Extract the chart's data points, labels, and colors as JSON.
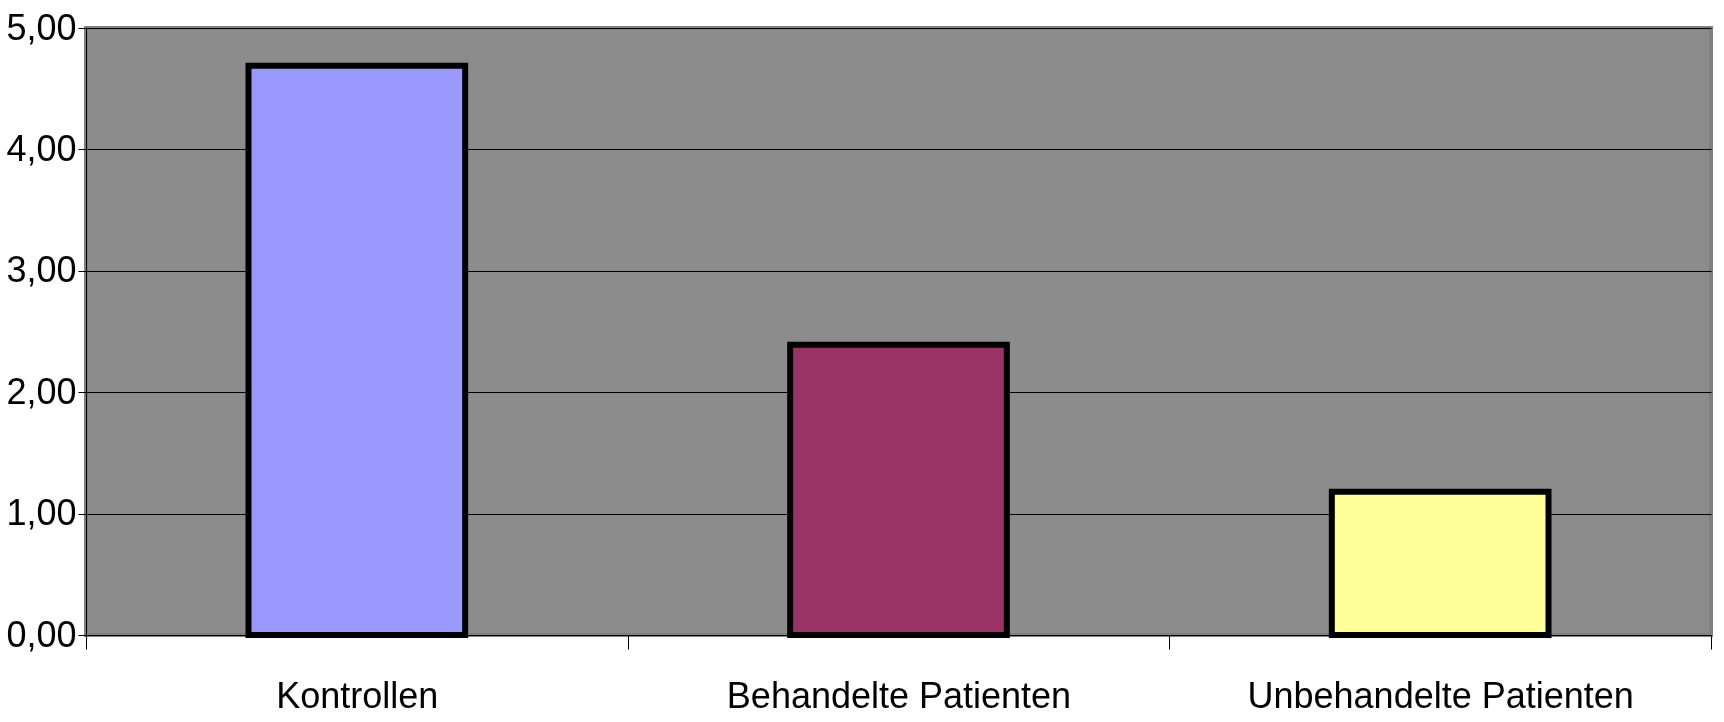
{
  "chart_data": {
    "type": "bar",
    "categories": [
      "Kontrollen",
      "Behandelte Patienten",
      "Unbehandelte Patienten"
    ],
    "values": [
      4.69,
      2.39,
      1.18
    ],
    "colors": [
      "#9999ff",
      "#993366",
      "#ffff99"
    ],
    "ylim": [
      0,
      5
    ],
    "yticks": [
      {
        "value": 0,
        "label": "0,00"
      },
      {
        "value": 1,
        "label": "1,00"
      },
      {
        "value": 2,
        "label": "2,00"
      },
      {
        "value": 3,
        "label": "3,00"
      },
      {
        "value": 4,
        "label": "4,00"
      },
      {
        "value": 5,
        "label": "5,00"
      }
    ],
    "grid": "y"
  }
}
